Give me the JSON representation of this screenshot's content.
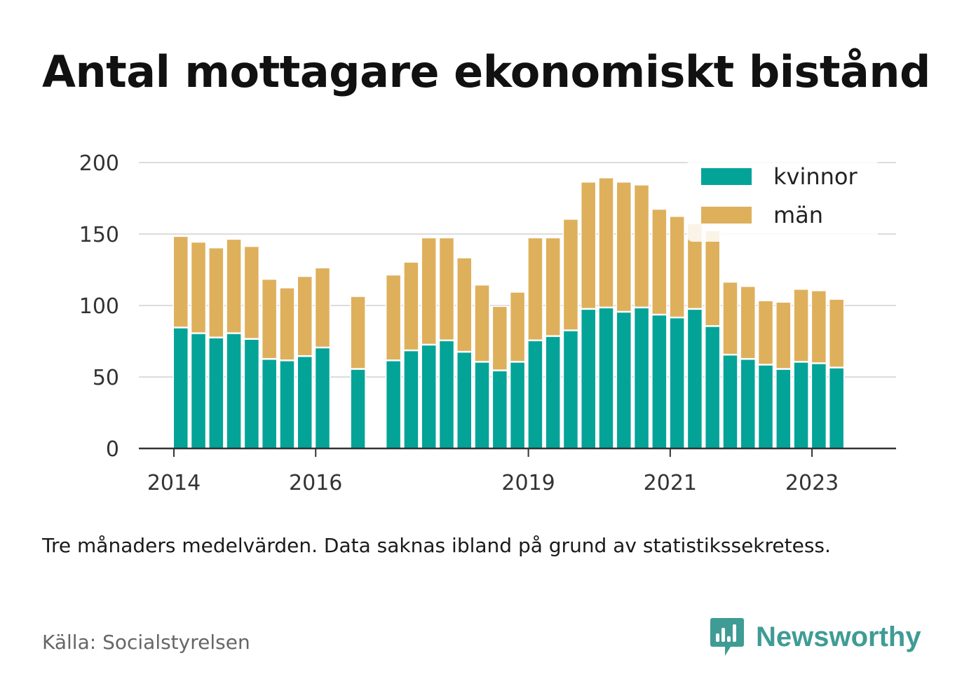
{
  "title": "Antal mottagare ekonomiskt bistånd",
  "note": "Tre månaders medelvärden. Data saknas ibland på grund av statistikssekretess.",
  "source": "Källa: Socialstyrelsen",
  "brand": {
    "name": "Newsworthy",
    "icon": "newsworthy-logo-icon",
    "color": "#3f9c95"
  },
  "colors": {
    "kvinnor": "#03a398",
    "man": "#deb05c",
    "grid": "#dcdcdc",
    "axis": "#333333"
  },
  "chart_data": {
    "type": "bar",
    "stacked": true,
    "ylim": [
      0,
      200
    ],
    "yticks": [
      0,
      50,
      100,
      150,
      200
    ],
    "xticks": [
      "2014",
      "2016",
      "2019",
      "2021",
      "2023"
    ],
    "grid": true,
    "legend_position": "top-right",
    "x": [
      "2014-Q1",
      "2014-Q2",
      "2014-Q3",
      "2014-Q4",
      "2015-Q1",
      "2015-Q2",
      "2015-Q3",
      "2015-Q4",
      "2016-Q1",
      "2016-Q2",
      "2016-Q3",
      "2016-Q4",
      "2017-Q1",
      "2017-Q2",
      "2017-Q3",
      "2017-Q4",
      "2018-Q1",
      "2018-Q2",
      "2018-Q3",
      "2018-Q4",
      "2019-Q1",
      "2019-Q2",
      "2019-Q3",
      "2019-Q4",
      "2020-Q1",
      "2020-Q2",
      "2020-Q3",
      "2020-Q4",
      "2021-Q1",
      "2021-Q2",
      "2021-Q3",
      "2021-Q4",
      "2022-Q1",
      "2022-Q2",
      "2022-Q3",
      "2022-Q4",
      "2023-Q1",
      "2023-Q2",
      "2023-Q3"
    ],
    "series": [
      {
        "name": "kvinnor",
        "values": [
          null,
          84,
          80,
          77,
          80,
          76,
          62,
          61,
          64,
          70,
          null,
          55,
          null,
          61,
          68,
          72,
          75,
          67,
          60,
          54,
          60,
          75,
          78,
          82,
          97,
          98,
          95,
          98,
          93,
          91,
          97,
          85,
          65,
          62,
          58,
          55,
          60,
          59,
          56
        ]
      },
      {
        "name": "män",
        "values": [
          null,
          64,
          64,
          63,
          66,
          65,
          56,
          51,
          56,
          56,
          null,
          51,
          null,
          60,
          62,
          75,
          72,
          66,
          54,
          45,
          49,
          72,
          69,
          78,
          89,
          91,
          91,
          86,
          74,
          71,
          60,
          67,
          51,
          51,
          45,
          47,
          51,
          51,
          48
        ]
      }
    ]
  }
}
